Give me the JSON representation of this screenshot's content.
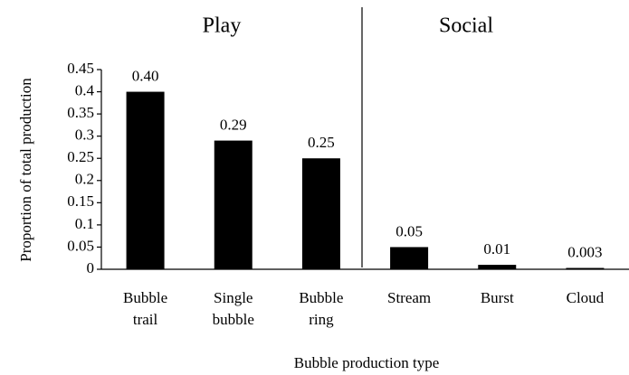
{
  "chart_data": {
    "type": "bar",
    "annotations": [
      "Play",
      "Social"
    ],
    "xlabel": "Bubble production type",
    "ylabel": "Proportion of total production",
    "categories": [
      "Bubble trail",
      "Single bubble",
      "Bubble ring",
      "Stream",
      "Burst",
      "Cloud"
    ],
    "values": [
      0.4,
      0.29,
      0.25,
      0.05,
      0.01,
      0.003
    ],
    "value_labels": [
      "0.40",
      "0.29",
      "0.25",
      "0.05",
      "0.01",
      "0.003"
    ],
    "color": "#000000",
    "ylim": [
      0,
      0.45
    ],
    "yticks": [
      0,
      0.05,
      0.1,
      0.15,
      0.2,
      0.25,
      0.3,
      0.35,
      0.4,
      0.45
    ]
  }
}
